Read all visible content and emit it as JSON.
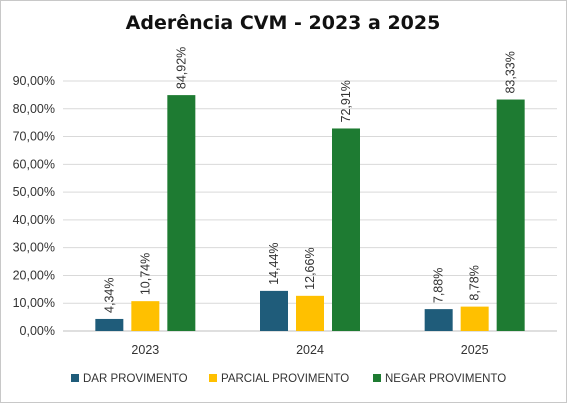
{
  "chart_data": {
    "type": "bar",
    "title": "Aderência CVM - 2023 a 2025",
    "categories": [
      "2023",
      "2024",
      "2025"
    ],
    "series": [
      {
        "name": "DAR PROVIMENTO",
        "color": "#1F5C7A",
        "values": [
          4.34,
          14.44,
          7.88
        ],
        "labels": [
          "4,34%",
          "14,44%",
          "7,88%"
        ]
      },
      {
        "name": "PARCIAL PROVIMENTO",
        "color": "#FFC000",
        "values": [
          10.74,
          12.66,
          8.78
        ],
        "labels": [
          "10,74%",
          "12,66%",
          "8,78%"
        ]
      },
      {
        "name": "NEGAR PROVIMENTO",
        "color": "#1E7B32",
        "values": [
          84.92,
          72.91,
          83.33
        ],
        "labels": [
          "84,92%",
          "72,91%",
          "83,33%"
        ]
      }
    ],
    "ylim": [
      0,
      90
    ],
    "yticks": [
      0,
      10,
      20,
      30,
      40,
      50,
      60,
      70,
      80,
      90
    ],
    "ytick_labels": [
      "0,00%",
      "10,00%",
      "20,00%",
      "30,00%",
      "40,00%",
      "50,00%",
      "60,00%",
      "70,00%",
      "80,00%",
      "90,00%"
    ],
    "grid": true,
    "legend_position": "bottom"
  }
}
